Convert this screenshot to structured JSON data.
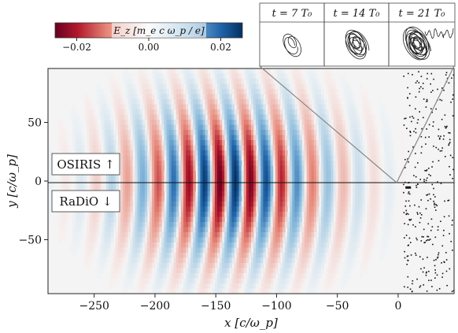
{
  "chart_data": {
    "type": "heatmap",
    "xlabel": "x [c/ω_p]",
    "ylabel": "y [c/ω_p]",
    "xlim": [
      -288,
      46
    ],
    "ylim": [
      -96,
      96
    ],
    "xticks": [
      {
        "value": -250,
        "label": "−250"
      },
      {
        "value": -200,
        "label": "−200"
      },
      {
        "value": -150,
        "label": "−150"
      },
      {
        "value": -100,
        "label": "−100"
      },
      {
        "value": -50,
        "label": "−50"
      },
      {
        "value": 0,
        "label": "0"
      }
    ],
    "yticks": [
      {
        "value": 50,
        "label": "50"
      },
      {
        "value": 0,
        "label": "0"
      },
      {
        "value": -50,
        "label": "−50"
      }
    ],
    "field": {
      "name": "E_z",
      "units": "m_e c ω_p / e",
      "wavelength": 25.5,
      "peak_x": -140,
      "envelope_half_width": 80,
      "transverse_half_width": 60,
      "amplitude": 0.026
    },
    "colorbar": {
      "label": "E_z  [m_e c ω_p / e]",
      "range": [
        -0.026,
        0.026
      ],
      "ticks": [
        {
          "value": -0.02,
          "label": "−0.02"
        },
        {
          "value": 0.0,
          "label": "0.00"
        },
        {
          "value": 0.02,
          "label": "0.02"
        }
      ],
      "low_color": "#67001f",
      "mid_color": "#f7f7f7",
      "high_color": "#053061"
    },
    "labels": {
      "upper": "OSIRIS ↑",
      "lower": "RaDiO ↓"
    },
    "insets": [
      {
        "title": "t = 7 T₀",
        "loops": 3
      },
      {
        "title": "t = 14 T₀",
        "loops": 9
      },
      {
        "title": "t = 21 T₀",
        "loops": 14
      }
    ]
  }
}
